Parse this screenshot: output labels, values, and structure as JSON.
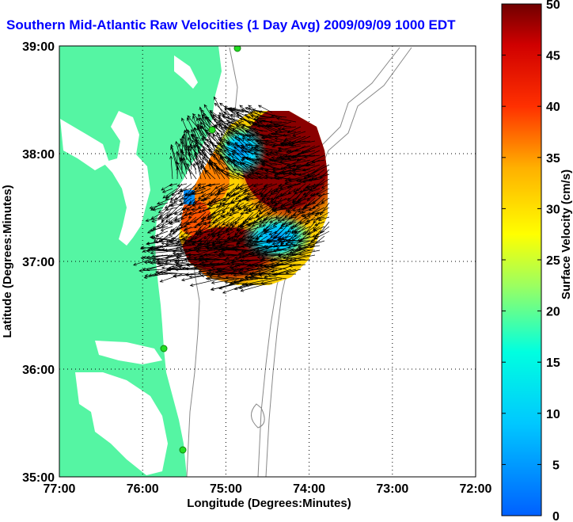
{
  "title": "Southern Mid-Atlantic Raw Velocities (1 Day Avg) 2009/09/09 1000 EDT",
  "xlabel": "Longitude (Degrees:Minutes)",
  "ylabel": "Latitude (Degrees:Minutes)",
  "colorbar_label": "Surface Velocity (cm/s)",
  "x_ticks": [
    "77:00",
    "76:00",
    "75:00",
    "74:00",
    "73:00",
    "72:00"
  ],
  "y_ticks": [
    "39:00",
    "38:00",
    "37:00",
    "36:00",
    "35:00"
  ],
  "colorbar_ticks": [
    "50",
    "45",
    "40",
    "35",
    "30",
    "25",
    "20",
    "15",
    "10",
    "5",
    "0"
  ],
  "colors": {
    "land": "#55f5a3",
    "title": "#0000ff",
    "station": "#22dd22",
    "bathymetry": "#888888"
  },
  "map_extent": {
    "lon_min": -77,
    "lon_max": -72,
    "lat_min": 35,
    "lat_max": 39
  },
  "colorbar_range": [
    0,
    50
  ]
}
